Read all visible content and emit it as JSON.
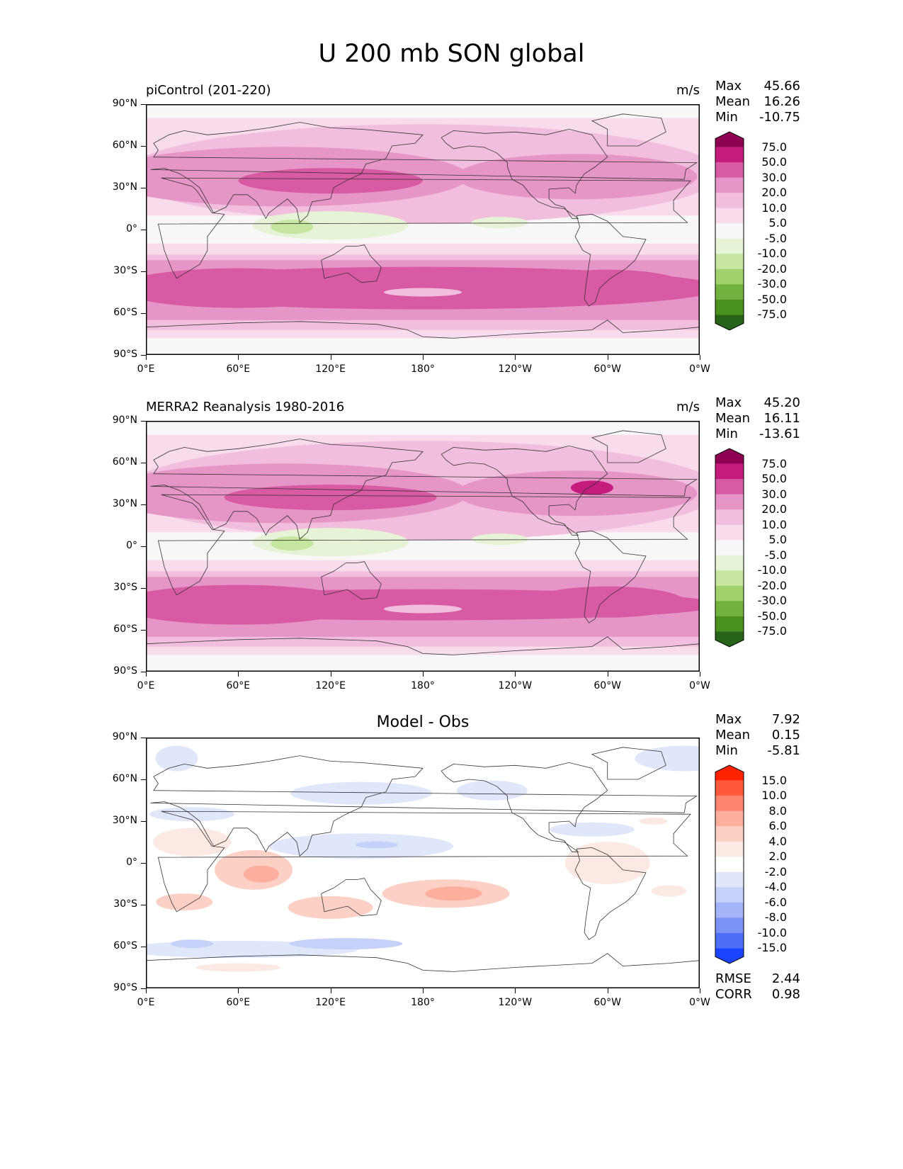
{
  "figure": {
    "title": "U 200 mb SON global"
  },
  "axes": {
    "y_ticks": [
      "90°N",
      "60°N",
      "30°N",
      "0°",
      "30°S",
      "60°S",
      "90°S"
    ],
    "x_ticks": [
      "0°E",
      "60°E",
      "120°E",
      "180°",
      "120°W",
      "60°W",
      "0°W"
    ]
  },
  "panels": [
    {
      "title_left": "piControl (201-220)",
      "title_center": "",
      "units": "m/s",
      "stats": [
        {
          "label": "Max",
          "value": "45.66"
        },
        {
          "label": "Mean",
          "value": "16.26"
        },
        {
          "label": "Min",
          "value": "-10.75"
        }
      ],
      "colorbar": {
        "labels": [
          "75.0",
          "50.0",
          "30.0",
          "20.0",
          "10.0",
          "5.0",
          "-5.0",
          "-10.0",
          "-20.0",
          "-30.0",
          "-50.0",
          "-75.0"
        ],
        "colors": [
          "#8e0152",
          "#c51b7d",
          "#d85aa3",
          "#e695c7",
          "#f1bfdd",
          "#f8dcec",
          "#f7f7f7",
          "#e6f3d6",
          "#c6e59f",
          "#a0d16d",
          "#72b340",
          "#4a901f",
          "#276419"
        ]
      },
      "metrics": []
    },
    {
      "title_left": "MERRA2 Reanalysis 1980-2016",
      "title_center": "",
      "units": "m/s",
      "stats": [
        {
          "label": "Max",
          "value": "45.20"
        },
        {
          "label": "Mean",
          "value": "16.11"
        },
        {
          "label": "Min",
          "value": "-13.61"
        }
      ],
      "colorbar": {
        "labels": [
          "75.0",
          "50.0",
          "30.0",
          "20.0",
          "10.0",
          "5.0",
          "-5.0",
          "-10.0",
          "-20.0",
          "-30.0",
          "-50.0",
          "-75.0"
        ],
        "colors": [
          "#8e0152",
          "#c51b7d",
          "#d85aa3",
          "#e695c7",
          "#f1bfdd",
          "#f8dcec",
          "#f7f7f7",
          "#e6f3d6",
          "#c6e59f",
          "#a0d16d",
          "#72b340",
          "#4a901f",
          "#276419"
        ]
      },
      "metrics": []
    },
    {
      "title_left": "",
      "title_center": "Model - Obs",
      "units": "",
      "stats": [
        {
          "label": "Max",
          "value": "7.92"
        },
        {
          "label": "Mean",
          "value": "0.15"
        },
        {
          "label": "Min",
          "value": "-5.81"
        }
      ],
      "colorbar": {
        "labels": [
          "15.0",
          "10.0",
          "8.0",
          "6.0",
          "4.0",
          "2.0",
          "-2.0",
          "-4.0",
          "-6.0",
          "-8.0",
          "-10.0",
          "-15.0"
        ],
        "colors": [
          "#ff2200",
          "#ff5a3c",
          "#fe8570",
          "#fdae9c",
          "#fcd0c4",
          "#fde9e3",
          "#ffffff",
          "#e1e7fb",
          "#c6d1fa",
          "#a3b4f8",
          "#7b92f6",
          "#4d6ef8",
          "#1a44ff"
        ]
      },
      "metrics": [
        {
          "label": "RMSE",
          "value": "2.44"
        },
        {
          "label": "CORR",
          "value": "0.98"
        }
      ]
    }
  ],
  "chart_data": [
    {
      "type": "heatmap",
      "title": "piControl (201-220)",
      "units": "m/s",
      "variable": "U 200 mb SON",
      "lon_range": [
        0,
        360
      ],
      "lat_range": [
        -90,
        90
      ],
      "zonal_bands": [
        {
          "lat": 85,
          "value": 3
        },
        {
          "lat": 70,
          "value": 8
        },
        {
          "lat": 55,
          "value": 18
        },
        {
          "lat": 40,
          "value": 28
        },
        {
          "lat": 30,
          "value": 25
        },
        {
          "lat": 15,
          "value": 6
        },
        {
          "lat": 0,
          "value": -3
        },
        {
          "lat": -15,
          "value": 8
        },
        {
          "lat": -30,
          "value": 30
        },
        {
          "lat": -45,
          "value": 35
        },
        {
          "lat": -60,
          "value": 20
        },
        {
          "lat": -75,
          "value": 7
        },
        {
          "lat": -85,
          "value": 2
        }
      ],
      "stats": {
        "max": 45.66,
        "mean": 16.26,
        "min": -10.75
      }
    },
    {
      "type": "heatmap",
      "title": "MERRA2 Reanalysis 1980-2016",
      "units": "m/s",
      "variable": "U 200 mb SON",
      "lon_range": [
        0,
        360
      ],
      "lat_range": [
        -90,
        90
      ],
      "zonal_bands": [
        {
          "lat": 85,
          "value": 2
        },
        {
          "lat": 70,
          "value": 9
        },
        {
          "lat": 55,
          "value": 17
        },
        {
          "lat": 40,
          "value": 27
        },
        {
          "lat": 30,
          "value": 25
        },
        {
          "lat": 15,
          "value": 7
        },
        {
          "lat": 0,
          "value": -4
        },
        {
          "lat": -15,
          "value": 9
        },
        {
          "lat": -30,
          "value": 29
        },
        {
          "lat": -45,
          "value": 34
        },
        {
          "lat": -60,
          "value": 19
        },
        {
          "lat": -75,
          "value": 7
        },
        {
          "lat": -85,
          "value": 1
        }
      ],
      "stats": {
        "max": 45.2,
        "mean": 16.11,
        "min": -13.61
      }
    },
    {
      "type": "heatmap",
      "title": "Model - Obs",
      "units": "m/s",
      "variable": "U 200 mb SON difference",
      "lon_range": [
        0,
        360
      ],
      "lat_range": [
        -90,
        90
      ],
      "zonal_bands": [
        {
          "lat": 75,
          "value": -1
        },
        {
          "lat": 50,
          "value": -2
        },
        {
          "lat": 30,
          "value": -1
        },
        {
          "lat": 15,
          "value": 2
        },
        {
          "lat": 0,
          "value": 1
        },
        {
          "lat": -20,
          "value": 3
        },
        {
          "lat": -35,
          "value": 2
        },
        {
          "lat": -55,
          "value": -2
        },
        {
          "lat": -70,
          "value": 1
        }
      ],
      "stats": {
        "max": 7.92,
        "mean": 0.15,
        "min": -5.81,
        "rmse": 2.44,
        "corr": 0.98
      }
    }
  ]
}
